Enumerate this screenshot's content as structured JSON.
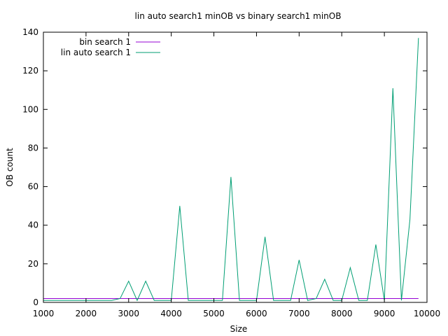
{
  "chart_data": {
    "type": "line",
    "title": "lin auto search1 minOB vs binary search1 minOB",
    "xlabel": "Size",
    "ylabel": "OB count",
    "xlim": [
      1000,
      10000
    ],
    "ylim": [
      0,
      140
    ],
    "xticks": [
      1000,
      2000,
      3000,
      4000,
      5000,
      6000,
      7000,
      8000,
      9000,
      10000
    ],
    "yticks": [
      0,
      20,
      40,
      60,
      80,
      100,
      120,
      140
    ],
    "grid": false,
    "legend_position": "top-left",
    "series": [
      {
        "name": "bin search 1",
        "color": "#9400d3",
        "x": [
          1000,
          9800
        ],
        "y": [
          2,
          2
        ]
      },
      {
        "name": "lin auto search 1",
        "color": "#009e73",
        "x": [
          1000,
          1200,
          1400,
          1600,
          1800,
          2000,
          2200,
          2400,
          2600,
          2800,
          3000,
          3200,
          3400,
          3600,
          3800,
          4000,
          4200,
          4400,
          4600,
          4800,
          5000,
          5200,
          5400,
          5600,
          5800,
          6000,
          6200,
          6400,
          6600,
          6800,
          7000,
          7200,
          7400,
          7600,
          7800,
          8000,
          8200,
          8400,
          8600,
          8800,
          9000,
          9200,
          9400,
          9600,
          9800
        ],
        "y": [
          1,
          1,
          1,
          1,
          1,
          1,
          1,
          1,
          1,
          2,
          11,
          1,
          11,
          1,
          1,
          1,
          50,
          1,
          1,
          1,
          1,
          1,
          65,
          1,
          1,
          1,
          34,
          1,
          1,
          1,
          22,
          1,
          2,
          12,
          1,
          1,
          18,
          1,
          1,
          30,
          1,
          111,
          1,
          43,
          137
        ]
      }
    ]
  }
}
